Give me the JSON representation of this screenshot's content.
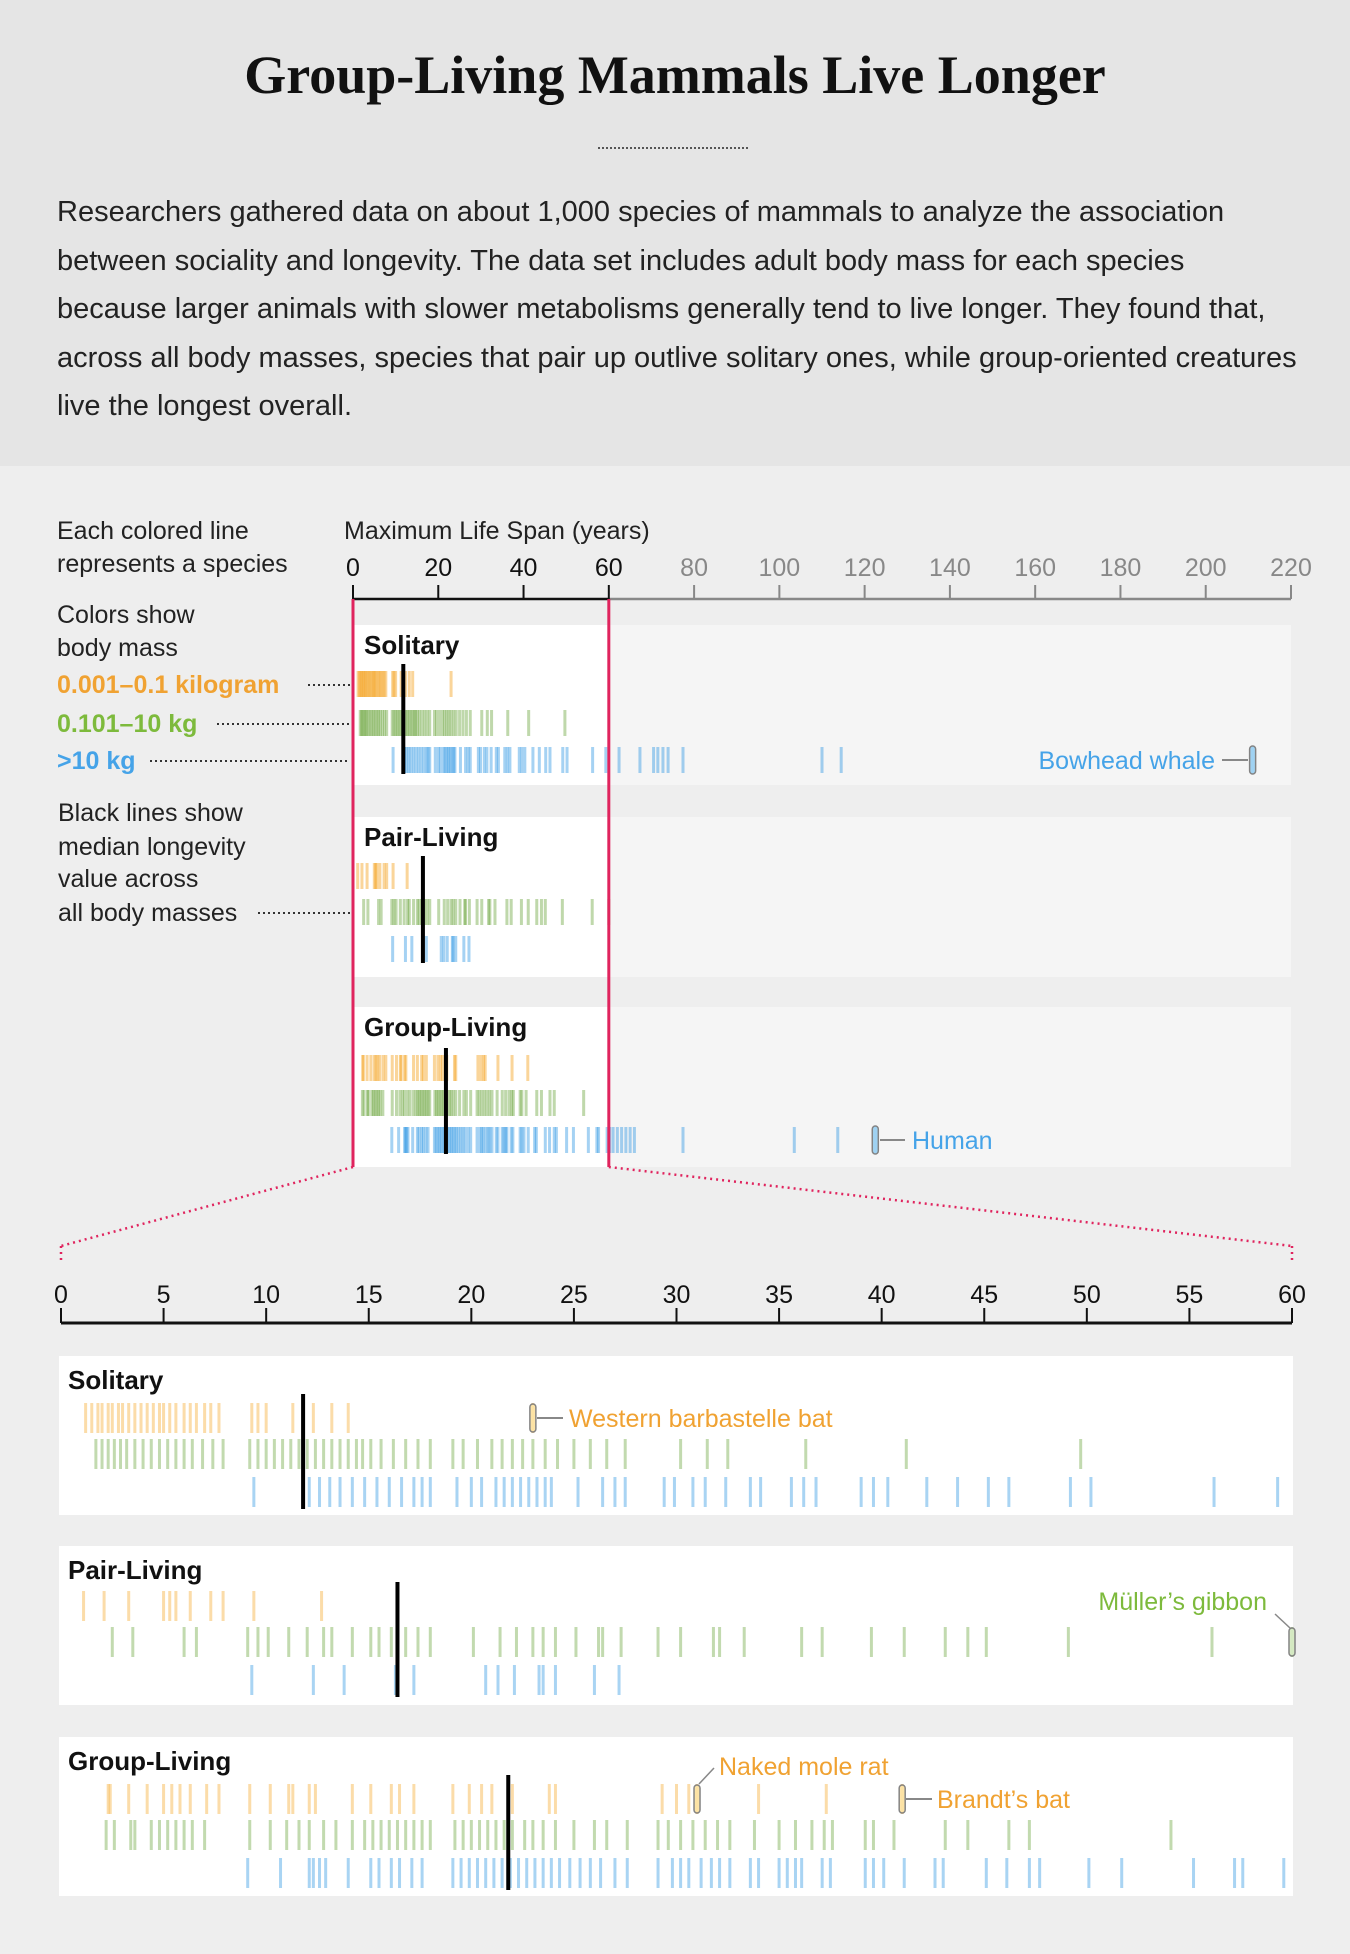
{
  "header": {
    "title": "Group-Living Mammals Live Longer",
    "intro": "Researchers gathered data on about 1,000 species of mammals to analyze the association between sociality and longevity. The data set includes adult body mass for each species because larger animals with slower metabolisms generally tend to live longer. They found that, across all body masses, species that pair up outlive solitary ones, while group-oriented creatures live the longest overall."
  },
  "legend": {
    "line1": "Each colored line",
    "line2": "represents a species",
    "colors1": "Colors show",
    "colors2": "body mass",
    "small": "0.001–0.1 kilogram",
    "medium": "0.101–10 kg",
    "large": ">10 kg",
    "black1": "Black lines show",
    "black2": "median longevity",
    "black3": "value across",
    "black4": "all body masses"
  },
  "colors": {
    "small": "#f5a21e",
    "medium": "#5e9e2c",
    "large": "#1e8fe0",
    "small_label": "#f0a232",
    "medium_label": "#7dba3c",
    "large_label": "#45a3e8",
    "zoom": "#e0245e"
  },
  "chart_data": [
    {
      "type": "strip",
      "xlabel": "Maximum Life Span (years)",
      "xlim": [
        0,
        220
      ],
      "ticks": [
        "0",
        "20",
        "40",
        "60",
        "80",
        "100",
        "120",
        "140",
        "160",
        "180",
        "200",
        "220"
      ],
      "highlight_range": [
        0,
        60
      ],
      "panels": [
        "Solitary",
        "Pair-Living",
        "Group-Living"
      ],
      "annotations": [
        {
          "panel": 0,
          "mass": "large",
          "label": "Bowhead whale",
          "value": 211
        },
        {
          "panel": 2,
          "mass": "large",
          "label": "Human",
          "value": 122.5
        }
      ]
    },
    {
      "type": "strip",
      "xlim": [
        0,
        60
      ],
      "ticks": [
        "0",
        "5",
        "10",
        "15",
        "20",
        "25",
        "30",
        "35",
        "40",
        "45",
        "50",
        "55",
        "60"
      ],
      "panels": [
        "Solitary",
        "Pair-Living",
        "Group-Living"
      ],
      "annotations": [
        {
          "panel": 0,
          "mass": "small",
          "label": "Western barbastelle bat",
          "value": 23
        },
        {
          "panel": 1,
          "mass": "medium",
          "label": "Müller’s gibbon",
          "value": 60
        },
        {
          "panel": 2,
          "mass": "small",
          "label": "Naked mole rat",
          "value": 31
        },
        {
          "panel": 2,
          "mass": "small",
          "label": "Brandt’s bat",
          "value": 41
        }
      ]
    }
  ],
  "groups": [
    {
      "name": "Solitary",
      "median": 11.8,
      "small": [
        1.2,
        1.5,
        1.8,
        2.0,
        2.3,
        2.5,
        2.8,
        3.0,
        3.3,
        3.6,
        3.9,
        4.2,
        4.5,
        4.8,
        5.0,
        5.3,
        5.6,
        6.0,
        6.3,
        6.6,
        7.0,
        7.3,
        7.7,
        9.3,
        9.6,
        10.0,
        11.3,
        11.8,
        12.3,
        13.2,
        14.0,
        23
      ],
      "medium": [
        1.7,
        2.0,
        2.3,
        2.6,
        2.9,
        3.2,
        3.6,
        4.0,
        4.4,
        4.8,
        5.2,
        5.6,
        6.0,
        6.4,
        6.9,
        7.4,
        7.9,
        9.2,
        9.6,
        10.0,
        10.4,
        10.8,
        11.2,
        11.6,
        12.0,
        12.4,
        12.8,
        13.2,
        13.6,
        14.0,
        14.4,
        14.7,
        15.1,
        15.6,
        16.2,
        16.8,
        17.4,
        18.0,
        19.1,
        19.6,
        20.3,
        21.0,
        21.5,
        22.0,
        22.5,
        23.0,
        23.6,
        24.2,
        25.0,
        25.8,
        26.6,
        27.5,
        30.2,
        31.5,
        32.5,
        36.3,
        41.2,
        49.7
      ],
      "large": [
        9.4,
        12.1,
        12.6,
        13.1,
        13.6,
        14.2,
        14.8,
        15.4,
        16.0,
        16.6,
        17.2,
        17.6,
        18.0,
        19.3,
        20.0,
        20.5,
        21.2,
        21.6,
        22.0,
        22.4,
        22.8,
        23.2,
        23.6,
        23.9,
        25.2,
        26.4,
        27.0,
        27.5,
        29.4,
        29.9,
        30.8,
        31.4,
        32.4,
        33.6,
        34.1,
        35.6,
        36.2,
        36.8,
        39.0,
        39.6,
        40.3,
        42.2,
        43.7,
        45.2,
        46.2,
        49.2,
        50.2,
        56.2,
        59.3,
        62.4,
        67.3,
        70.5,
        71.5,
        72.7,
        73.9,
        77.4,
        110,
        114.5,
        211
      ]
    },
    {
      "name": "Pair-Living",
      "median": 16.4,
      "small": [
        1.1,
        2.1,
        3.3,
        5.0,
        5.3,
        5.6,
        6.3,
        7.3,
        7.9,
        9.4,
        12.7
      ],
      "medium": [
        2.5,
        3.5,
        6.0,
        6.6,
        9.1,
        9.6,
        10.1,
        11.1,
        12.0,
        12.8,
        13.2,
        14.2,
        15.1,
        15.5,
        16.1,
        16.8,
        17.4,
        18.0,
        20.1,
        21.4,
        22.2,
        23.0,
        23.5,
        24.1,
        25.1,
        26.2,
        26.4,
        27.3,
        29.1,
        30.2,
        31.8,
        32.1,
        33.3,
        36.1,
        37.1,
        39.5,
        41.1,
        43.1,
        44.2,
        45.1,
        49.1,
        56.1,
        60
      ],
      "large": [
        9.3,
        12.3,
        13.8,
        16.3,
        17.2,
        20.7,
        21.3,
        22.1,
        23.3,
        23.5,
        24.1,
        26.0,
        27.2
      ]
    },
    {
      "name": "Group-Living",
      "median": 21.8,
      "small": [
        2.3,
        2.4,
        3.3,
        4.2,
        5.0,
        5.4,
        5.8,
        6.3,
        7.1,
        7.7,
        9.2,
        10.2,
        11.1,
        11.3,
        12.1,
        12.4,
        14.2,
        15.1,
        16.1,
        16.5,
        17.2,
        19.1,
        19.9,
        20.5,
        21.0,
        22.0,
        23.8,
        24.1,
        29.3,
        30.0,
        30.6,
        31,
        34.0,
        37.3,
        41
      ],
      "medium": [
        2.2,
        2.6,
        3.4,
        3.6,
        4.4,
        4.8,
        5.2,
        5.6,
        6.0,
        6.4,
        7.0,
        9.2,
        10.2,
        11.0,
        11.6,
        12.1,
        12.8,
        13.4,
        14.2,
        14.8,
        15.2,
        15.6,
        16.0,
        16.4,
        16.8,
        17.2,
        17.6,
        18.0,
        19.2,
        19.6,
        20.0,
        20.4,
        20.8,
        21.2,
        21.6,
        22.0,
        22.6,
        23.0,
        23.5,
        24.1,
        25.0,
        26.0,
        26.6,
        27.6,
        29.1,
        29.6,
        30.2,
        30.8,
        31.4,
        32.0,
        32.6,
        33.8,
        35.0,
        35.8,
        36.6,
        37.2,
        37.6,
        39.2,
        39.6,
        40.6,
        43.1,
        44.2,
        46.2,
        47.2,
        54.1
      ],
      "large": [
        9.1,
        10.7,
        12.1,
        12.3,
        12.6,
        12.9,
        14.0,
        15.1,
        15.5,
        16.1,
        16.5,
        17.1,
        17.6,
        19.1,
        19.5,
        19.9,
        20.3,
        20.7,
        21.1,
        21.5,
        21.9,
        22.3,
        22.7,
        23.1,
        23.5,
        23.9,
        24.3,
        24.8,
        25.3,
        25.8,
        26.3,
        27.0,
        27.6,
        29.1,
        29.8,
        30.2,
        30.6,
        31.2,
        31.7,
        32.1,
        32.6,
        33.6,
        34.0,
        35.0,
        35.4,
        35.8,
        36.1,
        37.1,
        37.5,
        39.2,
        39.6,
        40.1,
        41.1,
        42.6,
        43.0,
        45.1,
        46.1,
        47.2,
        47.7,
        50.1,
        51.7,
        55.2,
        57.2,
        57.6,
        59.6,
        60.2,
        61,
        62,
        63,
        64,
        65,
        66,
        77.4,
        103.5,
        113.7,
        122.5
      ]
    }
  ]
}
